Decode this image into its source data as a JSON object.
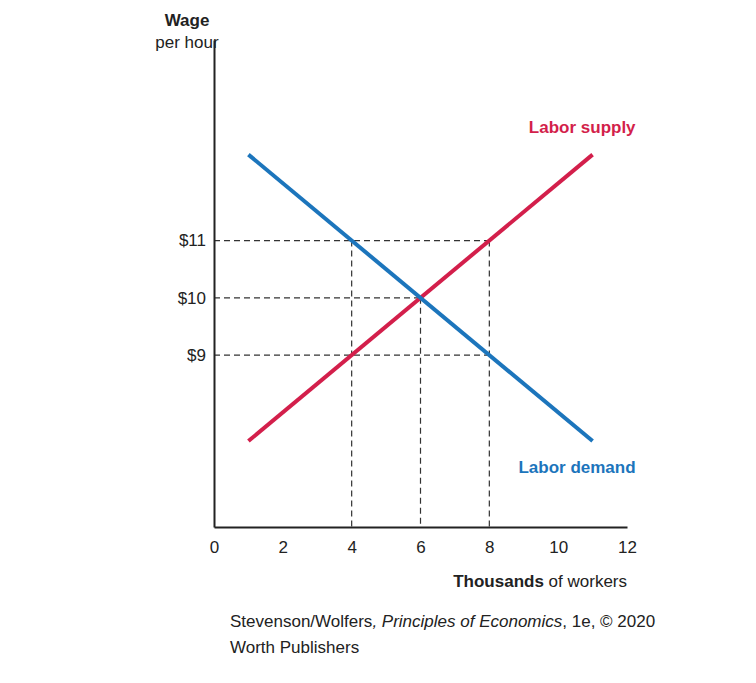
{
  "chart_data": {
    "type": "line",
    "y_label": [
      "Wage",
      "per hour"
    ],
    "x_label": "Thousands of workers",
    "source": [
      "Stevenson/Wolfers, Principles of Economics, 1e, © 2020",
      "Worth Publishers"
    ],
    "xlim": [
      0,
      12
    ],
    "xticks": [
      0,
      2,
      4,
      6,
      8,
      10,
      12
    ],
    "ylim": [
      6,
      14.5
    ],
    "yticks": [
      {
        "value": 9,
        "label": "$9"
      },
      {
        "value": 10,
        "label": "$10"
      },
      {
        "value": 11,
        "label": "$11"
      }
    ],
    "series": [
      {
        "name": "Labor supply",
        "color": "#d31f4b",
        "x": [
          1,
          11
        ],
        "values": [
          7.5,
          12.5
        ]
      },
      {
        "name": "Labor demand",
        "color": "#1c75bc",
        "x": [
          1,
          11
        ],
        "values": [
          12.5,
          7.5
        ]
      }
    ],
    "h_guides": [
      {
        "y": 11,
        "x": 8
      },
      {
        "y": 10,
        "x": 6
      },
      {
        "y": 9,
        "x": 8
      }
    ],
    "v_guides": [
      {
        "x": 4,
        "y": 11
      },
      {
        "x": 6,
        "y": 10
      },
      {
        "x": 8,
        "y": 11
      }
    ]
  }
}
